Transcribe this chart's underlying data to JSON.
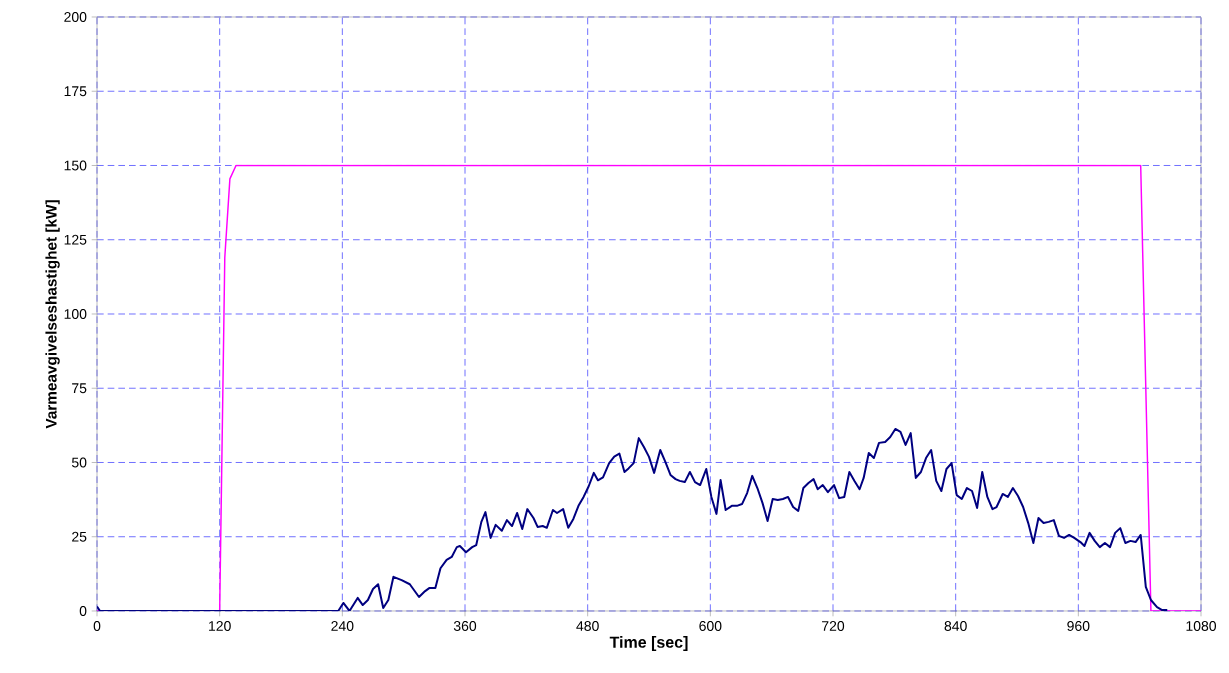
{
  "chart_data": {
    "type": "line",
    "xlabel": "Time [sec]",
    "ylabel": "Varmeavgivelseshastighet [kW]",
    "xlim": [
      0,
      1080
    ],
    "ylim": [
      0,
      200
    ],
    "xticks": [
      0,
      120,
      240,
      360,
      480,
      600,
      720,
      840,
      960,
      1080
    ],
    "yticks": [
      0,
      25,
      50,
      75,
      100,
      125,
      150,
      175,
      200
    ],
    "grid": true,
    "marker": "none",
    "line_style": "solid",
    "series": [
      {
        "color": "#ff00ff",
        "x": [
          0,
          120,
          125,
          130,
          136,
          160,
          200,
          250,
          300,
          350,
          400,
          450,
          500,
          550,
          600,
          650,
          700,
          750,
          800,
          850,
          900,
          950,
          1000,
          1021,
          1031,
          1080
        ],
        "values": [
          0,
          0,
          119,
          145.5,
          150,
          150,
          150,
          150,
          150,
          150,
          150,
          150,
          150,
          150,
          150,
          150,
          150,
          150,
          150,
          150,
          150,
          150,
          150,
          150,
          0,
          0
        ]
      },
      {
        "color": "#000080",
        "x": [
          0,
          3,
          236,
          241,
          247,
          255,
          260,
          265,
          270,
          275,
          280,
          285,
          290,
          298,
          306,
          315,
          321,
          325,
          331,
          336,
          342,
          347,
          352,
          355,
          361,
          367,
          371,
          376,
          380,
          385,
          390,
          396,
          401,
          406,
          411,
          416,
          421,
          427,
          431,
          436,
          440,
          446,
          450,
          456,
          461,
          466,
          471,
          476,
          481,
          486,
          490,
          495,
          501,
          506,
          511,
          516,
          520,
          525,
          530,
          535,
          540,
          545,
          551,
          556,
          561,
          566,
          570,
          575,
          580,
          585,
          590,
          596,
          601,
          606,
          610,
          615,
          621,
          626,
          631,
          636,
          641,
          646,
          651,
          656,
          661,
          666,
          671,
          676,
          681,
          686,
          691,
          696,
          701,
          705,
          710,
          715,
          721,
          726,
          731,
          736,
          741,
          746,
          750,
          755,
          760,
          765,
          771,
          776,
          781,
          786,
          791,
          796,
          801,
          806,
          811,
          816,
          821,
          826,
          831,
          836,
          841,
          846,
          851,
          856,
          861,
          866,
          871,
          876,
          880,
          886,
          891,
          896,
          901,
          906,
          911,
          916,
          921,
          926,
          931,
          936,
          941,
          946,
          951,
          956,
          962,
          966,
          971,
          976,
          981,
          986,
          991,
          996,
          1001,
          1006,
          1011,
          1016,
          1021,
          1026,
          1031,
          1037,
          1042,
          1047
        ],
        "values": [
          1.5,
          0,
          0,
          2.7,
          0,
          4.4,
          2,
          3.7,
          7.4,
          9,
          1,
          3.7,
          11.5,
          10.4,
          9,
          4.7,
          6.7,
          7.7,
          7.7,
          14.4,
          17.2,
          18.2,
          21.5,
          21.9,
          19.8,
          21.5,
          22.2,
          30,
          33.3,
          24.6,
          29,
          27,
          30.6,
          28.6,
          33,
          27.6,
          34.3,
          31.3,
          28.3,
          28.6,
          28,
          34,
          33,
          34.3,
          28,
          31,
          35.4,
          38.4,
          42,
          46.5,
          44,
          45,
          49.8,
          52,
          53,
          46.8,
          48,
          49.8,
          58.2,
          55.2,
          51.9,
          46.5,
          54.2,
          50.2,
          45.8,
          44.4,
          43.8,
          43.4,
          46.8,
          43.4,
          42.4,
          47.8,
          38.4,
          32.7,
          44.1,
          34,
          35.4,
          35.4,
          36,
          39.7,
          45.5,
          41.4,
          36.4,
          30.3,
          37.7,
          37.4,
          37.7,
          38.4,
          35,
          33.7,
          41.4,
          43.1,
          44.4,
          41,
          42.4,
          40,
          42.4,
          38,
          38.4,
          46.8,
          43.8,
          41,
          44.8,
          53.2,
          51.5,
          56.6,
          56.9,
          58.6,
          61.3,
          60.3,
          55.9,
          59.9,
          44.8,
          46.8,
          51.5,
          54.2,
          43.8,
          40.4,
          47.8,
          49.8,
          39,
          37.7,
          41.4,
          40.4,
          34.7,
          46.8,
          38.4,
          34.3,
          35,
          39.4,
          38.4,
          41.4,
          38.7,
          35,
          29.6,
          22.9,
          31.3,
          29.6,
          30,
          30.6,
          25.3,
          24.6,
          25.6,
          24.6,
          23.2,
          21.9,
          26.3,
          23.6,
          21.5,
          22.9,
          21.5,
          26.3,
          27.9,
          22.9,
          23.6,
          23.2,
          25.6,
          8.1,
          3.7,
          1.3,
          0.3,
          0.3
        ]
      }
    ]
  }
}
